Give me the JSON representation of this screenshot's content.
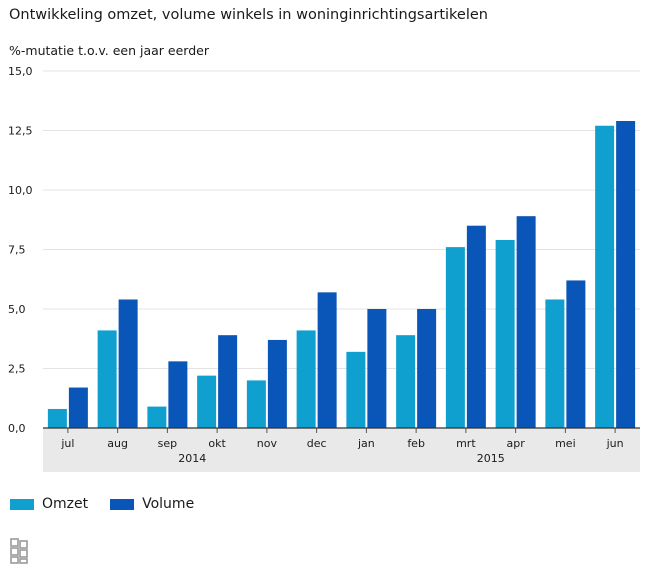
{
  "title": "Ontwikkeling omzet, volume winkels in woninginrichtingsartikelen",
  "colors": {
    "omzet": "#0fa0cf",
    "volume": "#0a55b8",
    "axis_band": "#e9e9e9",
    "grid": "#e3e3e3"
  },
  "chart_data": {
    "type": "bar",
    "title": "Ontwikkeling omzet, volume winkels in woninginrichtingsartikelen",
    "ylabel": "%-mutatie t.o.v. een jaar eerder",
    "ylim": [
      0,
      15
    ],
    "yticks": [
      "0,0",
      "2,5",
      "5,0",
      "7,5",
      "10,0",
      "12,5",
      "15,0"
    ],
    "categories": [
      "jul",
      "aug",
      "sep",
      "okt",
      "nov",
      "dec",
      "jan",
      "feb",
      "mrt",
      "apr",
      "mei",
      "jun"
    ],
    "groups": [
      {
        "label": "2014",
        "start": 0,
        "end": 5
      },
      {
        "label": "2015",
        "start": 6,
        "end": 11
      }
    ],
    "series": [
      {
        "name": "Omzet",
        "values": [
          0.8,
          4.1,
          0.9,
          2.2,
          2.0,
          4.1,
          3.2,
          3.9,
          7.6,
          7.9,
          5.4,
          12.7
        ]
      },
      {
        "name": "Volume",
        "values": [
          1.7,
          5.4,
          2.8,
          3.9,
          3.7,
          5.7,
          5.0,
          5.0,
          8.5,
          8.9,
          6.2,
          12.9
        ]
      }
    ],
    "grid": true,
    "legend": "bottom-left"
  },
  "legend": {
    "items": [
      "Omzet",
      "Volume"
    ]
  },
  "logo_icon": "cbs-logo-icon"
}
